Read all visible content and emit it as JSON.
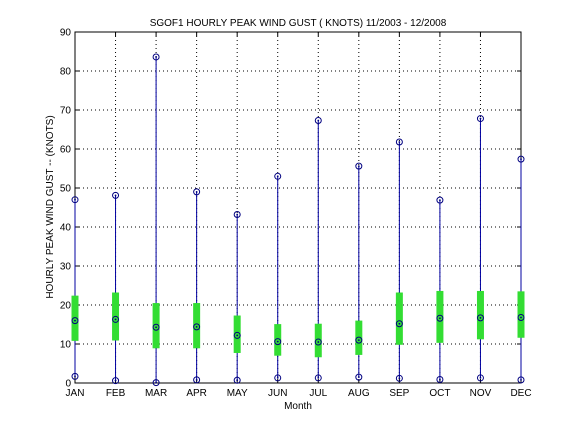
{
  "chart_data": {
    "type": "box",
    "title": "SGOF1  HOURLY PEAK WIND GUST ( KNOTS) 11/2003 - 12/2008",
    "xlabel": "Month",
    "ylabel": "HOURLY PEAK WIND GUST -- (KNOTS)",
    "ylim": [
      0,
      90
    ],
    "yticks": [
      0,
      10,
      20,
      30,
      40,
      50,
      60,
      70,
      80,
      90
    ],
    "grid": true,
    "categories": [
      "JAN",
      "FEB",
      "MAR",
      "APR",
      "MAY",
      "JUN",
      "JUL",
      "AUG",
      "SEP",
      "OCT",
      "NOV",
      "DEC"
    ],
    "series": [
      {
        "min": [
          1.7,
          0.6,
          0.1,
          0.8,
          0.7,
          1.3,
          1.3,
          1.5,
          1.2,
          0.9,
          1.3,
          0.8
        ],
        "q1": [
          10.8,
          10.9,
          8.9,
          8.9,
          7.7,
          7.0,
          6.6,
          7.2,
          9.8,
          10.3,
          11.2,
          11.6
        ],
        "median": [
          16.0,
          16.3,
          14.3,
          14.4,
          12.2,
          10.6,
          10.5,
          11.0,
          15.2,
          16.6,
          16.7,
          16.8
        ],
        "q3": [
          22.4,
          23.2,
          20.5,
          20.5,
          17.3,
          15.1,
          15.2,
          16.0,
          23.2,
          23.6,
          23.6,
          23.5
        ],
        "max": [
          47.0,
          48.1,
          83.6,
          49.0,
          43.2,
          53.0,
          67.3,
          55.6,
          61.8,
          46.9,
          67.8,
          57.4
        ]
      }
    ],
    "colors": {
      "whisker": "#0000a0",
      "box": "#33dd33",
      "marker": "#000080"
    }
  }
}
